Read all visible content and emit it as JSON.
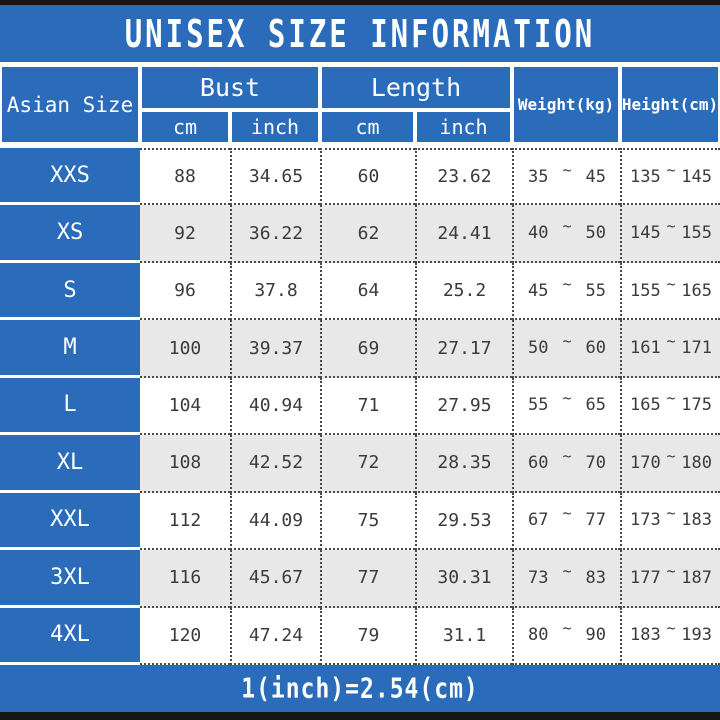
{
  "title": "UNISEX SIZE INFORMATION",
  "footer_note": "1(inch)=2.54(cm)",
  "colors": {
    "accent_blue": "#2a6cba",
    "alt_row": "#e8e8e8",
    "border_dark": "#161616"
  },
  "table": {
    "col_asian_size": "Asian Size",
    "group_bust": "Bust",
    "group_length": "Length",
    "sub_cm": "cm",
    "sub_inch": "inch",
    "col_weight": "Weight(kg)",
    "col_height": "Height(cm)",
    "range_separator": "~",
    "rows": [
      {
        "size": "XXS",
        "bust_cm": "88",
        "bust_inch": "34.65",
        "length_cm": "60",
        "length_inch": "23.62",
        "weight_min": "35",
        "weight_max": "45",
        "height_min": "135",
        "height_max": "145"
      },
      {
        "size": "XS",
        "bust_cm": "92",
        "bust_inch": "36.22",
        "length_cm": "62",
        "length_inch": "24.41",
        "weight_min": "40",
        "weight_max": "50",
        "height_min": "145",
        "height_max": "155"
      },
      {
        "size": "S",
        "bust_cm": "96",
        "bust_inch": "37.8",
        "length_cm": "64",
        "length_inch": "25.2",
        "weight_min": "45",
        "weight_max": "55",
        "height_min": "155",
        "height_max": "165"
      },
      {
        "size": "M",
        "bust_cm": "100",
        "bust_inch": "39.37",
        "length_cm": "69",
        "length_inch": "27.17",
        "weight_min": "50",
        "weight_max": "60",
        "height_min": "161",
        "height_max": "171"
      },
      {
        "size": "L",
        "bust_cm": "104",
        "bust_inch": "40.94",
        "length_cm": "71",
        "length_inch": "27.95",
        "weight_min": "55",
        "weight_max": "65",
        "height_min": "165",
        "height_max": "175"
      },
      {
        "size": "XL",
        "bust_cm": "108",
        "bust_inch": "42.52",
        "length_cm": "72",
        "length_inch": "28.35",
        "weight_min": "60",
        "weight_max": "70",
        "height_min": "170",
        "height_max": "180"
      },
      {
        "size": "XXL",
        "bust_cm": "112",
        "bust_inch": "44.09",
        "length_cm": "75",
        "length_inch": "29.53",
        "weight_min": "67",
        "weight_max": "77",
        "height_min": "173",
        "height_max": "183"
      },
      {
        "size": "3XL",
        "bust_cm": "116",
        "bust_inch": "45.67",
        "length_cm": "77",
        "length_inch": "30.31",
        "weight_min": "73",
        "weight_max": "83",
        "height_min": "177",
        "height_max": "187"
      },
      {
        "size": "4XL",
        "bust_cm": "120",
        "bust_inch": "47.24",
        "length_cm": "79",
        "length_inch": "31.1",
        "weight_min": "80",
        "weight_max": "90",
        "height_min": "183",
        "height_max": "193"
      }
    ]
  }
}
